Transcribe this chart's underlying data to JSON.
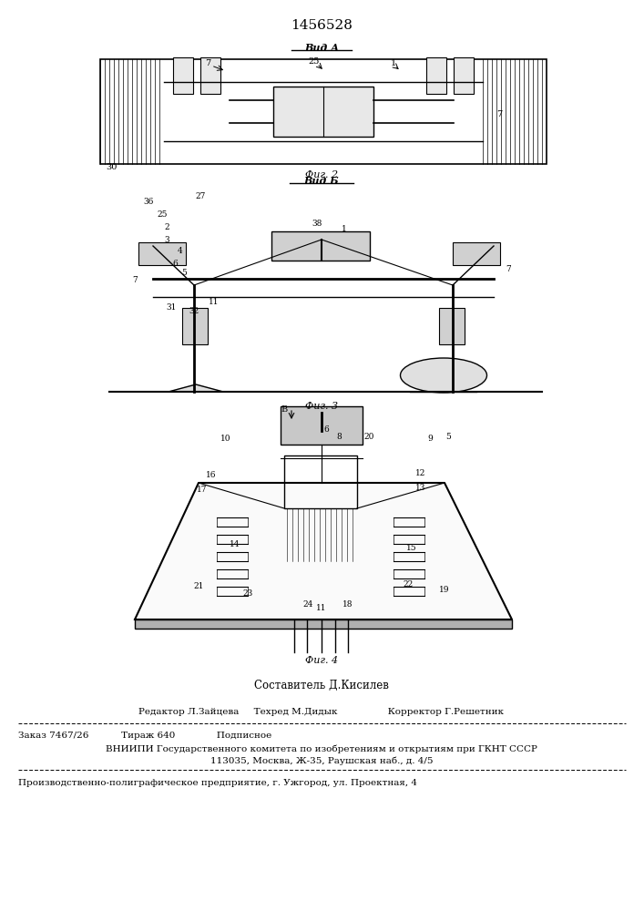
{
  "patent_number": "1456528",
  "background_color": "#ffffff",
  "text_color": "#000000",
  "sestavitel": "Составитель Д.Кисилев",
  "editor_line": "Редактор Л.Зайцева     Техред М.Дидык                 Корректор Г.Решетник",
  "zakaz_line": "Заказ 7467/26           Тираж 640              Подписное",
  "vniishi_line": "ВНИИПИ Государственного комитета по изобретениям и открытиям при ГКНТ СССР",
  "address_line": "113035, Москва, Ж-35, Раушская наб., д. 4/5",
  "factory_line": "Производственно-полиграфическое предприятие, г. Ужгород, ул. Проектная, 4",
  "fig1_label": "Вид А",
  "fig2_label": "Фиг. 2",
  "fig3_label": "Фиг. 3",
  "fig4_label": "Фиг. 4",
  "fig_vid_b": "Вид Б"
}
